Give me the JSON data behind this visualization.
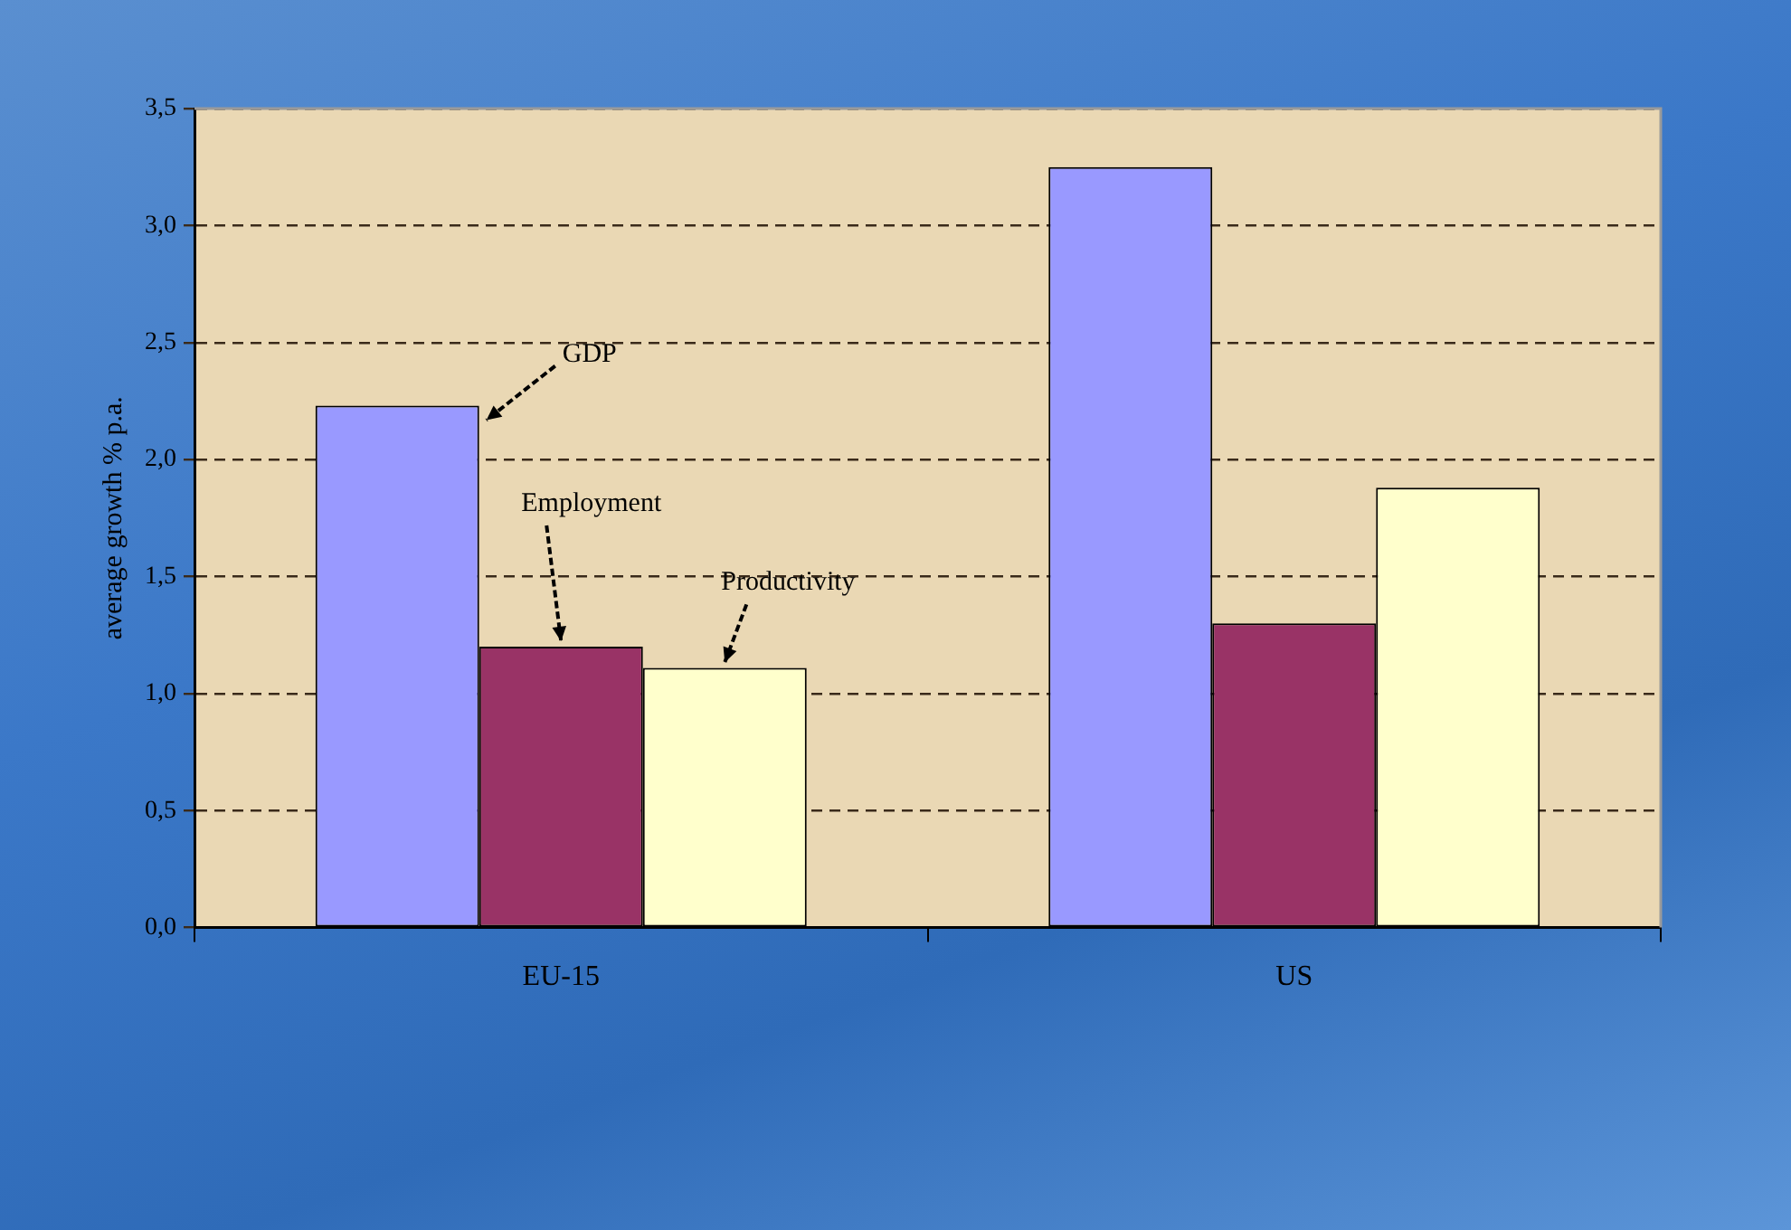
{
  "chart_data": {
    "type": "bar",
    "ylabel": "average growth % p.a.",
    "categories": [
      "EU-15",
      "US"
    ],
    "series": [
      {
        "name": "GDP",
        "color": "#9999ff",
        "values": [
          2.23,
          3.25
        ]
      },
      {
        "name": "Employment",
        "color": "#993366",
        "values": [
          1.2,
          1.3
        ]
      },
      {
        "name": "Productivity",
        "color": "#ffffcc",
        "values": [
          1.11,
          1.88
        ]
      }
    ],
    "ylim": [
      0,
      3.5
    ],
    "yticks": [
      {
        "value": 0,
        "label": "0,0"
      },
      {
        "value": 0.5,
        "label": "0,5"
      },
      {
        "value": 1,
        "label": "1,0"
      },
      {
        "value": 1.5,
        "label": "1,5"
      },
      {
        "value": 2,
        "label": "2,0"
      },
      {
        "value": 2.5,
        "label": "2,5"
      },
      {
        "value": 3,
        "label": "3,0"
      },
      {
        "value": 3.5,
        "label": "3,5"
      }
    ],
    "grid": "y",
    "legend": false
  }
}
